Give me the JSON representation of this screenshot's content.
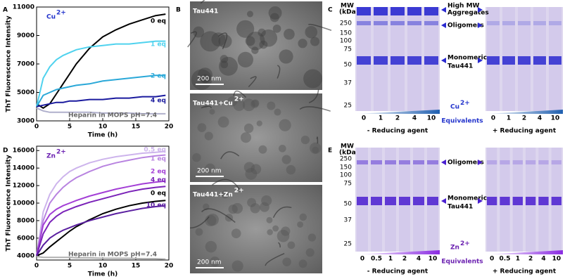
{
  "chart_data": [
    {
      "type": "line",
      "panel": "A",
      "ion": "Cu",
      "charge": "2+",
      "x_label": "Time (h)",
      "y_label": "ThT Fluorescence Intensity",
      "x": [
        0,
        1,
        2,
        3,
        4,
        5,
        6,
        8,
        10,
        12,
        14,
        16,
        18,
        19.5
      ],
      "xlim": [
        0,
        20
      ],
      "xticks": [
        0,
        5,
        10,
        15,
        20
      ],
      "ylim": [
        3000,
        11000
      ],
      "yticks": [
        3000,
        5000,
        7000,
        9000,
        11000
      ],
      "series": [
        {
          "name": "0 eq",
          "color": "#000000",
          "values": [
            4200,
            3900,
            4200,
            4900,
            5600,
            6300,
            7000,
            8100,
            8900,
            9400,
            9800,
            10100,
            10400,
            10500
          ]
        },
        {
          "name": "1 eq",
          "color": "#4fd2ee",
          "values": [
            4000,
            6000,
            6800,
            7300,
            7600,
            7800,
            8000,
            8200,
            8300,
            8400,
            8400,
            8500,
            8600,
            8600
          ]
        },
        {
          "name": "2 eq",
          "color": "#2aa8d8",
          "values": [
            4000,
            4800,
            5000,
            5200,
            5300,
            5400,
            5500,
            5600,
            5800,
            5900,
            6000,
            6100,
            6200,
            6200
          ]
        },
        {
          "name": "4 eq",
          "color": "#1a1a9e",
          "values": [
            4000,
            4100,
            4200,
            4300,
            4300,
            4400,
            4400,
            4500,
            4500,
            4600,
            4600,
            4700,
            4700,
            4800
          ]
        },
        {
          "name": "Heparin in MOPS pH=7.4",
          "color": "#b0b0cc",
          "values": [
            3900,
            3700,
            3600,
            3600,
            3600,
            3600,
            3600,
            3600,
            3550,
            3550,
            3550,
            3500,
            3500,
            3500
          ]
        }
      ]
    },
    {
      "type": "line",
      "panel": "D",
      "ion": "Zn",
      "charge": "2+",
      "x_label": "Time (h)",
      "y_label": "ThT Fluorescence Intensity",
      "x": [
        0,
        1,
        2,
        3,
        4,
        5,
        6,
        8,
        10,
        12,
        14,
        16,
        18,
        19.5
      ],
      "xlim": [
        0,
        20
      ],
      "xticks": [
        0,
        5,
        10,
        15,
        20
      ],
      "ylim": [
        3500,
        16500
      ],
      "yticks": [
        4000,
        6000,
        8000,
        10000,
        12000,
        14000,
        16000
      ],
      "series": [
        {
          "name": "0.5 eq",
          "color": "#cdb4ec",
          "values": [
            4000,
            9000,
            11000,
            12200,
            13000,
            13600,
            14000,
            14600,
            15000,
            15300,
            15500,
            15700,
            15800,
            15900
          ]
        },
        {
          "name": "1 eq",
          "color": "#b883e0",
          "values": [
            4000,
            8000,
            10000,
            11000,
            11800,
            12400,
            12900,
            13600,
            14200,
            14600,
            14900,
            15200,
            15400,
            15500
          ]
        },
        {
          "name": "2 eq",
          "color": "#a33fd6",
          "values": [
            4000,
            7500,
            8700,
            9300,
            9700,
            10000,
            10300,
            10800,
            11200,
            11600,
            11900,
            12200,
            12400,
            12500
          ]
        },
        {
          "name": "4 eq",
          "color": "#7a22b8",
          "values": [
            4000,
            6500,
            7800,
            8500,
            9000,
            9300,
            9600,
            10100,
            10500,
            10900,
            11300,
            11600,
            11800,
            11900
          ]
        },
        {
          "name": "0 eq",
          "color": "#000000",
          "values": [
            4000,
            4300,
            5000,
            5600,
            6200,
            6800,
            7300,
            8100,
            8800,
            9300,
            9700,
            10000,
            10200,
            10300
          ]
        },
        {
          "name": "10 eq",
          "color": "#5a1fa0",
          "values": [
            4000,
            5200,
            6000,
            6500,
            6900,
            7200,
            7500,
            8000,
            8400,
            8800,
            9100,
            9400,
            9600,
            9700
          ]
        },
        {
          "name": "Heparin in MOPS pH=7.4",
          "color": "#b0b0b0",
          "values": [
            3900,
            3800,
            3800,
            3800,
            3800,
            3800,
            3750,
            3750,
            3700,
            3700,
            3700,
            3650,
            3650,
            3600
          ]
        }
      ]
    }
  ],
  "panel_b": {
    "letter": "B",
    "images": [
      {
        "label": "Tau441",
        "scale": "200 nm"
      },
      {
        "label": "Tau441+Cu",
        "charge": "2+",
        "scale": "200 nm"
      },
      {
        "label": "Tau441+Zn",
        "charge": "2+",
        "scale": "200 nm"
      }
    ]
  },
  "panel_c": {
    "letter": "C",
    "mw_title": "MW",
    "mw_unit": "(kDa)",
    "mw_markers": [
      250,
      150,
      100,
      75,
      50,
      37,
      25
    ],
    "annotations": [
      "High MW",
      "Aggregates",
      "Oligomers",
      "Monomeric",
      "Tau441"
    ],
    "lanes": [
      0,
      1,
      2,
      4,
      10
    ],
    "left_condition": "- Reducing agent",
    "right_condition": "+ Reducing agent",
    "ion": "Cu",
    "charge": "2+",
    "equivalents": "Equivalents"
  },
  "panel_e": {
    "letter": "E",
    "mw_title": "MW",
    "mw_unit": "(kDa)",
    "mw_markers": [
      250,
      150,
      100,
      75,
      50,
      37,
      25
    ],
    "annotations": [
      "Oligomers",
      "Monomeric",
      "Tau441"
    ],
    "lanes": [
      0,
      0.5,
      1,
      2,
      4,
      10
    ],
    "left_condition": "- Reducing agent",
    "right_condition": "+ Reducing agent",
    "ion": "Zn",
    "charge": "2+",
    "equivalents": "Equivalents"
  }
}
